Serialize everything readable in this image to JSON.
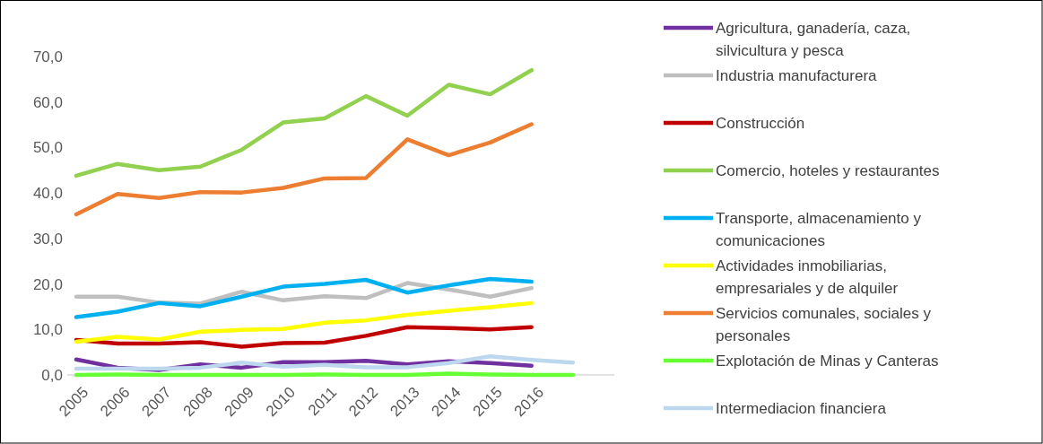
{
  "chart_data": {
    "type": "line",
    "categories": [
      "2005",
      "2006",
      "2007",
      "2008",
      "2009",
      "2010",
      "2011",
      "2012",
      "2013",
      "2014",
      "2015",
      "2016",
      null
    ],
    "ylim": [
      0,
      70
    ],
    "yticks": [
      {
        "value": 0,
        "label": "0,0"
      },
      {
        "value": 10,
        "label": "10,0"
      },
      {
        "value": 20,
        "label": "20,0"
      },
      {
        "value": 30,
        "label": "30,0"
      },
      {
        "value": 40,
        "label": "40,0"
      },
      {
        "value": 50,
        "label": "50,0"
      },
      {
        "value": 60,
        "label": "60,0"
      },
      {
        "value": 70,
        "label": "70,0"
      }
    ],
    "grid": false,
    "legend": "right",
    "line_style": "solid",
    "series": [
      {
        "name": "Agricultura, ganadería, caza, silvicultura y pesca",
        "color": "#7030a0",
        "values": [
          3.4,
          1.6,
          1.1,
          2.3,
          1.6,
          2.8,
          2.8,
          3.1,
          2.3,
          3.0,
          2.6,
          2.0,
          null
        ]
      },
      {
        "name": "Industria manufacturera",
        "color": "#bfbfbf",
        "values": [
          17.2,
          17.2,
          15.9,
          15.7,
          18.3,
          16.4,
          17.3,
          16.9,
          20.2,
          18.8,
          17.2,
          19.1,
          null
        ]
      },
      {
        "name": "Construcción",
        "color": "#c00000",
        "values": [
          7.7,
          6.9,
          6.9,
          7.2,
          6.2,
          7.0,
          7.1,
          8.6,
          10.5,
          10.3,
          10.0,
          10.5,
          null
        ]
      },
      {
        "name": "Comercio, hoteles y restaurantes",
        "color": "#92d050",
        "values": [
          43.8,
          46.4,
          45.0,
          45.8,
          49.5,
          55.5,
          56.4,
          61.3,
          57.0,
          63.8,
          61.7,
          67.0,
          null
        ]
      },
      {
        "name": "Transporte, almacenamiento y comunicaciones",
        "color": "#00b0f0",
        "values": [
          12.7,
          13.9,
          15.8,
          15.1,
          17.2,
          19.4,
          20.0,
          20.9,
          18.1,
          19.7,
          21.1,
          20.5,
          null
        ]
      },
      {
        "name": "Actividades inmobiliarias, empresariales y de alquiler",
        "color": "#ffff00",
        "values": [
          7.3,
          8.4,
          7.8,
          9.5,
          9.9,
          10.1,
          11.5,
          12.0,
          13.2,
          14.1,
          14.9,
          15.8,
          null
        ]
      },
      {
        "name": "Servicios comunales, sociales y personales",
        "color": "#ed7d31",
        "values": [
          35.3,
          39.8,
          38.9,
          40.2,
          40.1,
          41.1,
          43.2,
          43.3,
          51.8,
          48.3,
          51.1,
          55.1,
          null
        ]
      },
      {
        "name": "Explotación de Minas y Canteras",
        "color": "#66ff33",
        "values": [
          0.0,
          0.1,
          0.0,
          0.0,
          0.0,
          0.0,
          0.1,
          0.0,
          0.0,
          0.3,
          0.1,
          0.0,
          0.0
        ]
      },
      {
        "name": "Intermediacion financiera",
        "color": "#bdd7ee",
        "values": [
          1.4,
          1.4,
          1.4,
          1.6,
          2.7,
          1.8,
          2.2,
          1.7,
          1.7,
          2.6,
          4.1,
          3.3,
          2.7
        ]
      }
    ]
  }
}
